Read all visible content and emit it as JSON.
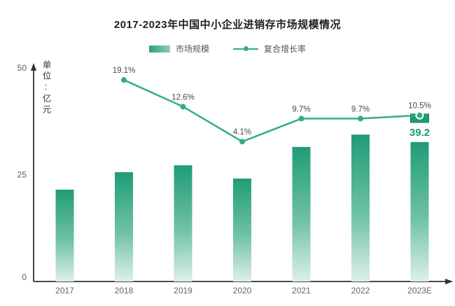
{
  "title": "2017-2023年中国中小企业进销存市场规模情况",
  "legend": {
    "bar_label": "市场规模",
    "line_label": "复合增长率"
  },
  "y_axis": {
    "unit_label": "单位:亿元",
    "ticks": [
      "0",
      "25",
      "50"
    ]
  },
  "chart_data": {
    "type": "bar+line",
    "title": "2017-2023年中国中小企业进销存市场规模情况",
    "categories": [
      "2017",
      "2018",
      "2019",
      "2020",
      "2021",
      "2022",
      "2023E"
    ],
    "series": [
      {
        "name": "市场规模",
        "type": "bar",
        "unit": "亿元",
        "values": [
          21.5,
          25.6,
          27.2,
          24.1,
          31.5,
          34.4,
          39.2
        ],
        "value_labels": [
          "",
          "",
          "",
          "",
          "",
          "",
          "39.2"
        ]
      },
      {
        "name": "复合增长率",
        "type": "line",
        "values": [
          null,
          19.1,
          12.6,
          4.1,
          9.7,
          9.7,
          10.5
        ],
        "point_labels": [
          "",
          "19.1%",
          "12.6%",
          "4.1%",
          "9.7%",
          "9.7%",
          "10.5%"
        ]
      }
    ],
    "ylim": [
      0,
      50
    ],
    "grid": false,
    "legend_position": "top"
  },
  "colors": {
    "bar_top": "#1f9c77",
    "bar_mid": "#6fc2a4",
    "bar_bottom": "#ddf0e8",
    "bar_cap_border": "#0d7b58",
    "line": "#32ad84",
    "highlight_value": "#1a9a70",
    "axis": "#333333",
    "tick_label": "#5a5a5a",
    "point_label": "#4a4a4a",
    "category_label": "#666666"
  }
}
